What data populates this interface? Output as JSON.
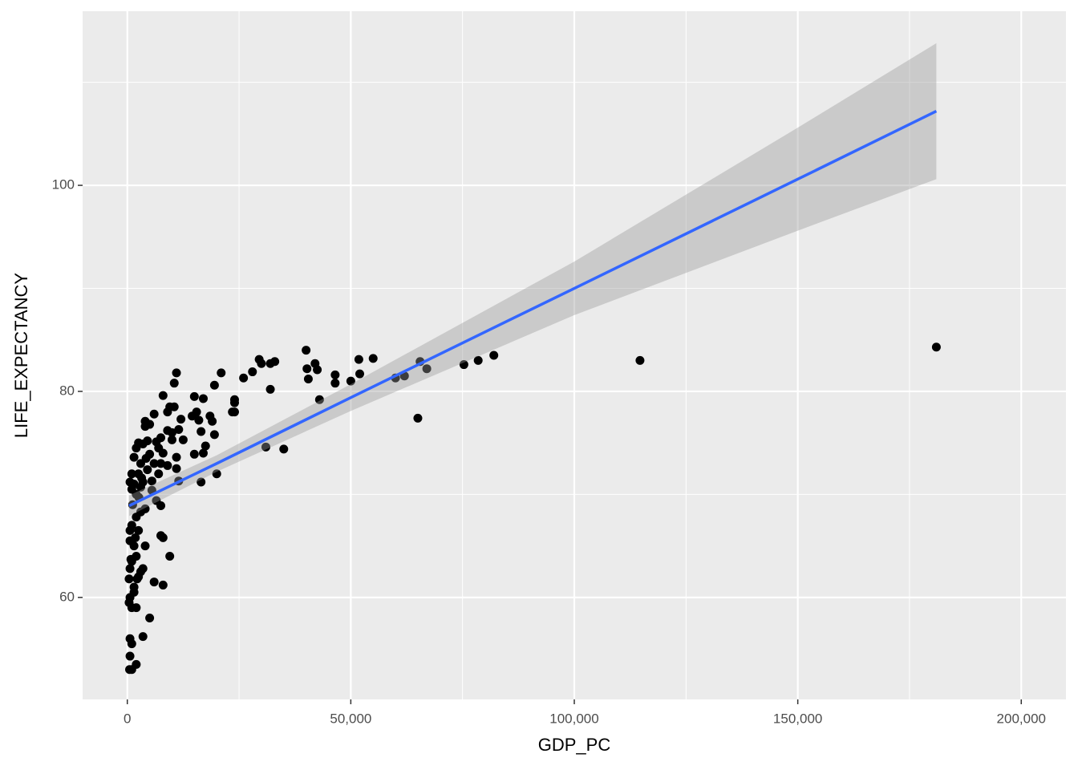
{
  "chart_data": {
    "type": "scatter",
    "x_label": "GDP_PC",
    "y_label": "LIFE_EXPECTANCY",
    "x": [
      181000,
      114700,
      82000,
      78500,
      75300,
      67000,
      65000,
      65500,
      62000,
      60000,
      55000,
      52000,
      51800,
      50000,
      46500,
      46500,
      43000,
      42500,
      42000,
      40500,
      40200,
      40000,
      35000,
      33000,
      32000,
      32000,
      31000,
      30000,
      29500,
      28000,
      26000,
      24000,
      24000,
      24000,
      23500,
      21000,
      20000,
      19500,
      19500,
      19000,
      18500,
      17500,
      17000,
      17000,
      16500,
      16500,
      16000,
      15500,
      15000,
      15000,
      14500,
      12500,
      11500,
      12000,
      11000,
      11500,
      10500,
      10500,
      10000,
      10000,
      11000,
      11000,
      9500,
      9500,
      9000,
      9000,
      8000,
      8000,
      8000,
      7500,
      7500,
      7500,
      8000,
      7500,
      7000,
      7000,
      6500,
      6500,
      6000,
      6000,
      5500,
      5500,
      5000,
      5000,
      5000,
      4500,
      4500,
      4000,
      4000,
      4000,
      4000,
      3500,
      3500,
      3500,
      3500,
      3000,
      3000,
      3000,
      2500,
      2500,
      2500,
      2500,
      2000,
      2000,
      2000,
      2000,
      2000,
      2000,
      1500,
      1500,
      1500,
      1500,
      1500,
      1000,
      1000,
      1000,
      1000,
      1000,
      1000,
      1000,
      600,
      600,
      600,
      600,
      600,
      600,
      600,
      500,
      400,
      400,
      800,
      1200,
      2200,
      3000,
      1800,
      2600,
      4200,
      6000,
      9000,
      3200
    ],
    "values": [
      84.3,
      83.0,
      83.5,
      83.0,
      82.6,
      82.2,
      77.4,
      82.9,
      81.5,
      81.3,
      83.2,
      81.7,
      83.1,
      81.0,
      81.6,
      80.8,
      79.2,
      82.1,
      82.7,
      81.2,
      82.2,
      84.0,
      74.4,
      82.9,
      80.2,
      82.7,
      74.6,
      82.7,
      83.1,
      81.9,
      81.3,
      79.2,
      78.9,
      78.0,
      78.0,
      81.8,
      72.0,
      80.6,
      75.8,
      77.1,
      77.6,
      74.7,
      74.0,
      79.3,
      71.2,
      76.1,
      77.2,
      78.0,
      73.9,
      79.5,
      77.6,
      75.3,
      71.3,
      77.3,
      81.8,
      76.3,
      80.8,
      78.5,
      75.3,
      76.0,
      73.6,
      72.5,
      64.0,
      78.5,
      76.2,
      78.0,
      79.6,
      61.2,
      65.8,
      66.0,
      68.9,
      73.0,
      74.0,
      75.5,
      74.5,
      72.0,
      69.4,
      75.1,
      77.8,
      61.5,
      71.3,
      70.4,
      76.8,
      73.9,
      58.0,
      75.2,
      72.4,
      77.1,
      76.6,
      68.6,
      65.0,
      56.2,
      62.8,
      71.2,
      74.9,
      73.0,
      70.7,
      68.3,
      75.0,
      72.0,
      62.0,
      66.5,
      74.5,
      70.0,
      67.8,
      64.0,
      53.5,
      59.0,
      73.6,
      71.0,
      65.0,
      60.5,
      61.0,
      72.0,
      70.5,
      67.0,
      63.5,
      59.0,
      55.5,
      53.0,
      71.2,
      66.5,
      65.5,
      62.8,
      60.0,
      56.0,
      54.3,
      53.0,
      61.8,
      59.5,
      63.7,
      69.0,
      61.8,
      62.5,
      65.8,
      69.7,
      73.5,
      73.0,
      72.8,
      71.6
    ],
    "color": "#000000",
    "fit": {
      "x": [
        400,
        20000,
        50000,
        100000,
        150000,
        181000
      ],
      "values": [
        68.9,
        73.0,
        79.4,
        90.0,
        100.6,
        107.2
      ],
      "lower": [
        67.9,
        72.2,
        78.1,
        87.4,
        95.6,
        100.6
      ],
      "upper": [
        69.9,
        73.8,
        80.7,
        92.6,
        105.6,
        113.8
      ],
      "color": "#3366ff",
      "band_color": "#999999"
    },
    "xlim": [
      -10000,
      210000
    ],
    "ylim": [
      50.1,
      116.9
    ],
    "xticks": [
      0,
      {
        "value": 50000,
        "label": "50,000"
      },
      {
        "value": 100000,
        "label": "100,000"
      },
      {
        "value": 150000,
        "label": "150,000"
      },
      {
        "value": 200000,
        "label": "200,000"
      }
    ],
    "yticks": [
      60,
      80,
      100
    ],
    "x_minor_ticks": [
      25000,
      75000,
      125000,
      175000
    ],
    "y_minor_ticks": [
      70,
      90,
      110
    ],
    "grid": true
  }
}
